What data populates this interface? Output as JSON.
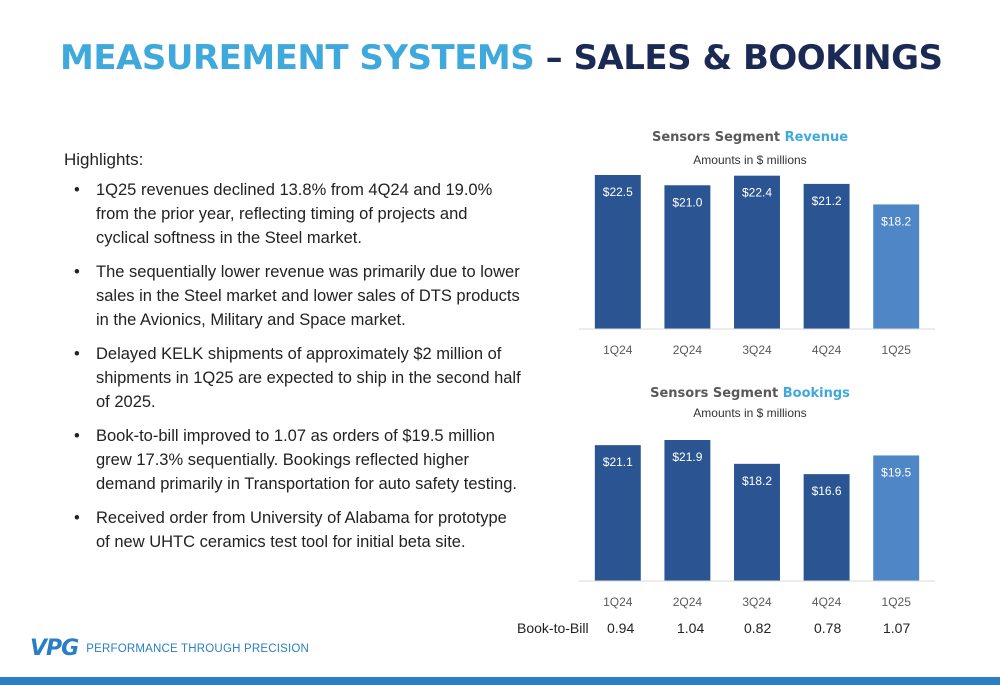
{
  "title": {
    "part1": "MEASUREMENT SYSTEMS",
    "part2": "– SALES & BOOKINGS"
  },
  "highlights": {
    "heading": "Highlights:",
    "bullet_char": "•",
    "items": [
      "1Q25 revenues declined 13.8% from 4Q24 and 19.0% from the prior year, reflecting timing of projects and cyclical softness in the Steel market.",
      "The sequentially lower revenue was primarily due to lower sales in the Steel market and lower sales of DTS products in the Avionics, Military and Space market.",
      "Delayed KELK shipments of approximately $2 million of shipments in 1Q25 are expected to ship in the second half of 2025.",
      "Book-to-bill improved to 1.07 as orders of $19.5 million grew 17.3% sequentially. Bookings reflected higher demand primarily in Transportation for auto safety testing.",
      "Received order from University of Alabama for prototype of new UHTC ceramics test tool for initial beta site."
    ]
  },
  "chart_data": [
    {
      "type": "bar",
      "title": "Sensors Segment",
      "title_accent": "Revenue",
      "subtitle": "Amounts in $ millions",
      "categories": [
        "1Q24",
        "2Q24",
        "3Q24",
        "4Q24",
        "1Q25"
      ],
      "values": [
        22.5,
        21.0,
        22.4,
        21.2,
        18.2
      ],
      "labels": [
        "$22.5",
        "$21.0",
        "$22.4",
        "$21.2",
        "$18.2"
      ],
      "ylim": [
        0,
        22.5
      ],
      "colors": [
        "#2b5592",
        "#2b5592",
        "#2b5592",
        "#2b5592",
        "#4f86c6"
      ]
    },
    {
      "type": "bar",
      "title": "Sensors Segment",
      "title_accent": "Bookings",
      "subtitle": "Amounts in $ millions",
      "categories": [
        "1Q24",
        "2Q24",
        "3Q24",
        "4Q24",
        "1Q25"
      ],
      "values": [
        21.1,
        21.9,
        18.2,
        16.6,
        19.5
      ],
      "labels": [
        "$21.1",
        "$21.9",
        "$18.2",
        "$16.6",
        "$19.5"
      ],
      "ylim": [
        0,
        21.9
      ],
      "colors": [
        "#2b5592",
        "#2b5592",
        "#2b5592",
        "#2b5592",
        "#4f86c6"
      ]
    }
  ],
  "book_to_bill": {
    "label": "Book-to-Bill",
    "values": [
      "0.94",
      "1.04",
      "0.82",
      "0.78",
      "1.07"
    ]
  },
  "footer": {
    "logo": "VPG",
    "tagline": "PERFORMANCE THROUGH PRECISION",
    "accent_color": "#2a7fc4"
  }
}
